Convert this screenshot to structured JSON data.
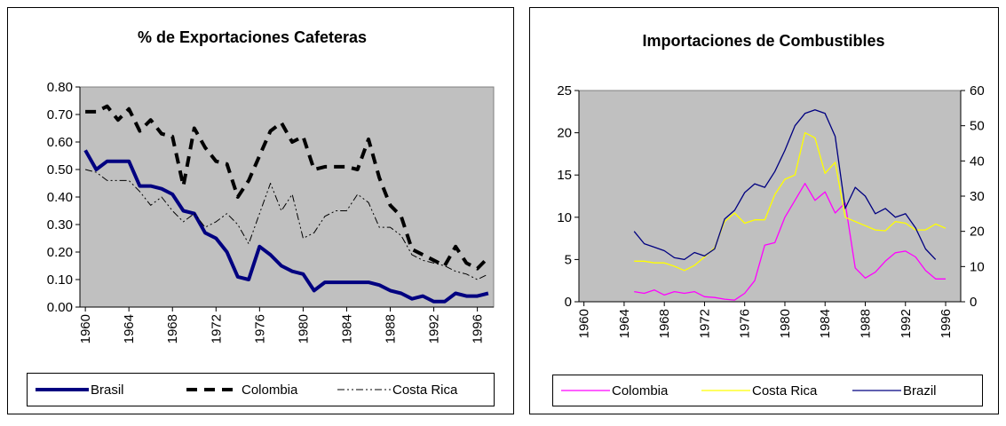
{
  "chart_data": [
    {
      "type": "line",
      "title": "% de Exportaciones Cafeteras",
      "x": [
        1960,
        1961,
        1962,
        1963,
        1964,
        1965,
        1966,
        1967,
        1968,
        1969,
        1970,
        1971,
        1972,
        1973,
        1974,
        1975,
        1976,
        1977,
        1978,
        1979,
        1980,
        1981,
        1982,
        1983,
        1984,
        1985,
        1986,
        1987,
        1988,
        1989,
        1990,
        1991,
        1992,
        1993,
        1994,
        1995,
        1996,
        1997
      ],
      "xlim": [
        1959.5,
        1997.5
      ],
      "xticks": [
        1960,
        1964,
        1968,
        1972,
        1976,
        1980,
        1984,
        1988,
        1992,
        1996
      ],
      "ylim": [
        0,
        0.8
      ],
      "yticks": [
        {
          "value": 0,
          "label": "0.00"
        },
        {
          "value": 0.1,
          "label": "0.10"
        },
        {
          "value": 0.2,
          "label": "0.20"
        },
        {
          "value": 0.3,
          "label": "0.30"
        },
        {
          "value": 0.4,
          "label": "0.40"
        },
        {
          "value": 0.5,
          "label": "0.50"
        },
        {
          "value": 0.6,
          "label": "0.60"
        },
        {
          "value": 0.7,
          "label": "0.70"
        },
        {
          "value": 0.8,
          "label": "0.80"
        }
      ],
      "series": [
        {
          "name": "Brasil",
          "color": "#000080",
          "width": 4,
          "dash": "none",
          "values": [
            0.57,
            0.5,
            0.53,
            0.53,
            0.53,
            0.44,
            0.44,
            0.43,
            0.41,
            0.35,
            0.34,
            0.27,
            0.25,
            0.2,
            0.11,
            0.1,
            0.22,
            0.19,
            0.15,
            0.13,
            0.12,
            0.06,
            0.09,
            0.09,
            0.09,
            0.09,
            0.09,
            0.08,
            0.06,
            0.05,
            0.03,
            0.04,
            0.02,
            0.02,
            0.05,
            0.04,
            0.04,
            0.05
          ]
        },
        {
          "name": "Colombia",
          "color": "#000000",
          "width": 4,
          "dash": "12,8",
          "values": [
            0.71,
            0.71,
            0.73,
            0.68,
            0.72,
            0.64,
            0.68,
            0.63,
            0.62,
            0.44,
            0.65,
            0.58,
            0.53,
            0.52,
            0.4,
            0.46,
            0.55,
            0.64,
            0.67,
            0.6,
            0.62,
            0.5,
            0.51,
            0.51,
            0.51,
            0.5,
            0.61,
            0.47,
            0.37,
            0.33,
            0.21,
            0.19,
            0.17,
            0.15,
            0.22,
            0.16,
            0.14,
            0.18
          ]
        },
        {
          "name": "Costa Rica",
          "color": "#000000",
          "width": 1,
          "dash": "8,3,2,3,2,3",
          "values": [
            0.5,
            0.49,
            0.46,
            0.46,
            0.46,
            0.42,
            0.37,
            0.4,
            0.35,
            0.31,
            0.34,
            0.29,
            0.31,
            0.34,
            0.3,
            0.23,
            0.34,
            0.45,
            0.35,
            0.41,
            0.25,
            0.27,
            0.33,
            0.35,
            0.35,
            0.41,
            0.38,
            0.29,
            0.29,
            0.26,
            0.19,
            0.17,
            0.16,
            0.15,
            0.13,
            0.12,
            0.1,
            0.12
          ]
        }
      ]
    },
    {
      "type": "line",
      "title": "Importaciones de Combustibles",
      "x": [
        1965,
        1966,
        1967,
        1968,
        1969,
        1970,
        1971,
        1972,
        1973,
        1974,
        1975,
        1976,
        1977,
        1978,
        1979,
        1980,
        1981,
        1982,
        1983,
        1984,
        1985,
        1986,
        1987,
        1988,
        1989,
        1990,
        1991,
        1992,
        1993,
        1994,
        1995,
        1996
      ],
      "xlim": [
        1959.5,
        1997.5
      ],
      "xticks": [
        1960,
        1964,
        1968,
        1972,
        1976,
        1980,
        1984,
        1988,
        1992,
        1996
      ],
      "ylim": [
        0,
        25
      ],
      "yticks": [
        0,
        5,
        10,
        15,
        20,
        25
      ],
      "y2lim": [
        0,
        60
      ],
      "y2ticks": [
        0,
        10,
        20,
        30,
        40,
        50,
        60
      ],
      "series": [
        {
          "name": "Colombia",
          "color": "#ff00ff",
          "width": 1.3,
          "values": [
            1.2,
            1.0,
            1.4,
            0.8,
            1.2,
            1.0,
            1.2,
            0.6,
            0.5,
            0.3,
            0.2,
            1.0,
            2.5,
            6.7,
            7.0,
            10.0,
            12.0,
            14.0,
            12.0,
            13.0,
            10.5,
            11.7,
            4.0,
            2.8,
            3.5,
            4.8,
            5.8,
            6.0,
            5.3,
            3.7,
            2.7,
            2.7
          ]
        },
        {
          "name": "Costa Rica",
          "color": "#ffff00",
          "width": 1.3,
          "values": [
            4.8,
            4.8,
            4.6,
            4.6,
            4.2,
            3.7,
            4.3,
            5.3,
            6.4,
            9.5,
            10.5,
            9.3,
            9.7,
            9.7,
            12.7,
            14.5,
            15.0,
            20.0,
            19.4,
            15.2,
            16.5,
            10.0,
            9.5,
            9.0,
            8.5,
            8.4,
            9.5,
            9.3,
            8.5,
            8.5,
            9.2,
            8.7
          ]
        },
        {
          "name": "Brazil",
          "color": "#000080",
          "width": 1.3,
          "axis": "y2",
          "values": [
            20,
            16.5,
            15.5,
            14.5,
            12.5,
            12,
            14,
            13,
            15,
            23.5,
            26,
            31,
            33.5,
            32.5,
            37,
            43,
            50,
            53.5,
            54.5,
            53.5,
            47,
            26.5,
            32.5,
            30,
            25,
            26.5,
            24,
            25,
            21,
            15,
            12,
            null
          ]
        }
      ]
    }
  ]
}
